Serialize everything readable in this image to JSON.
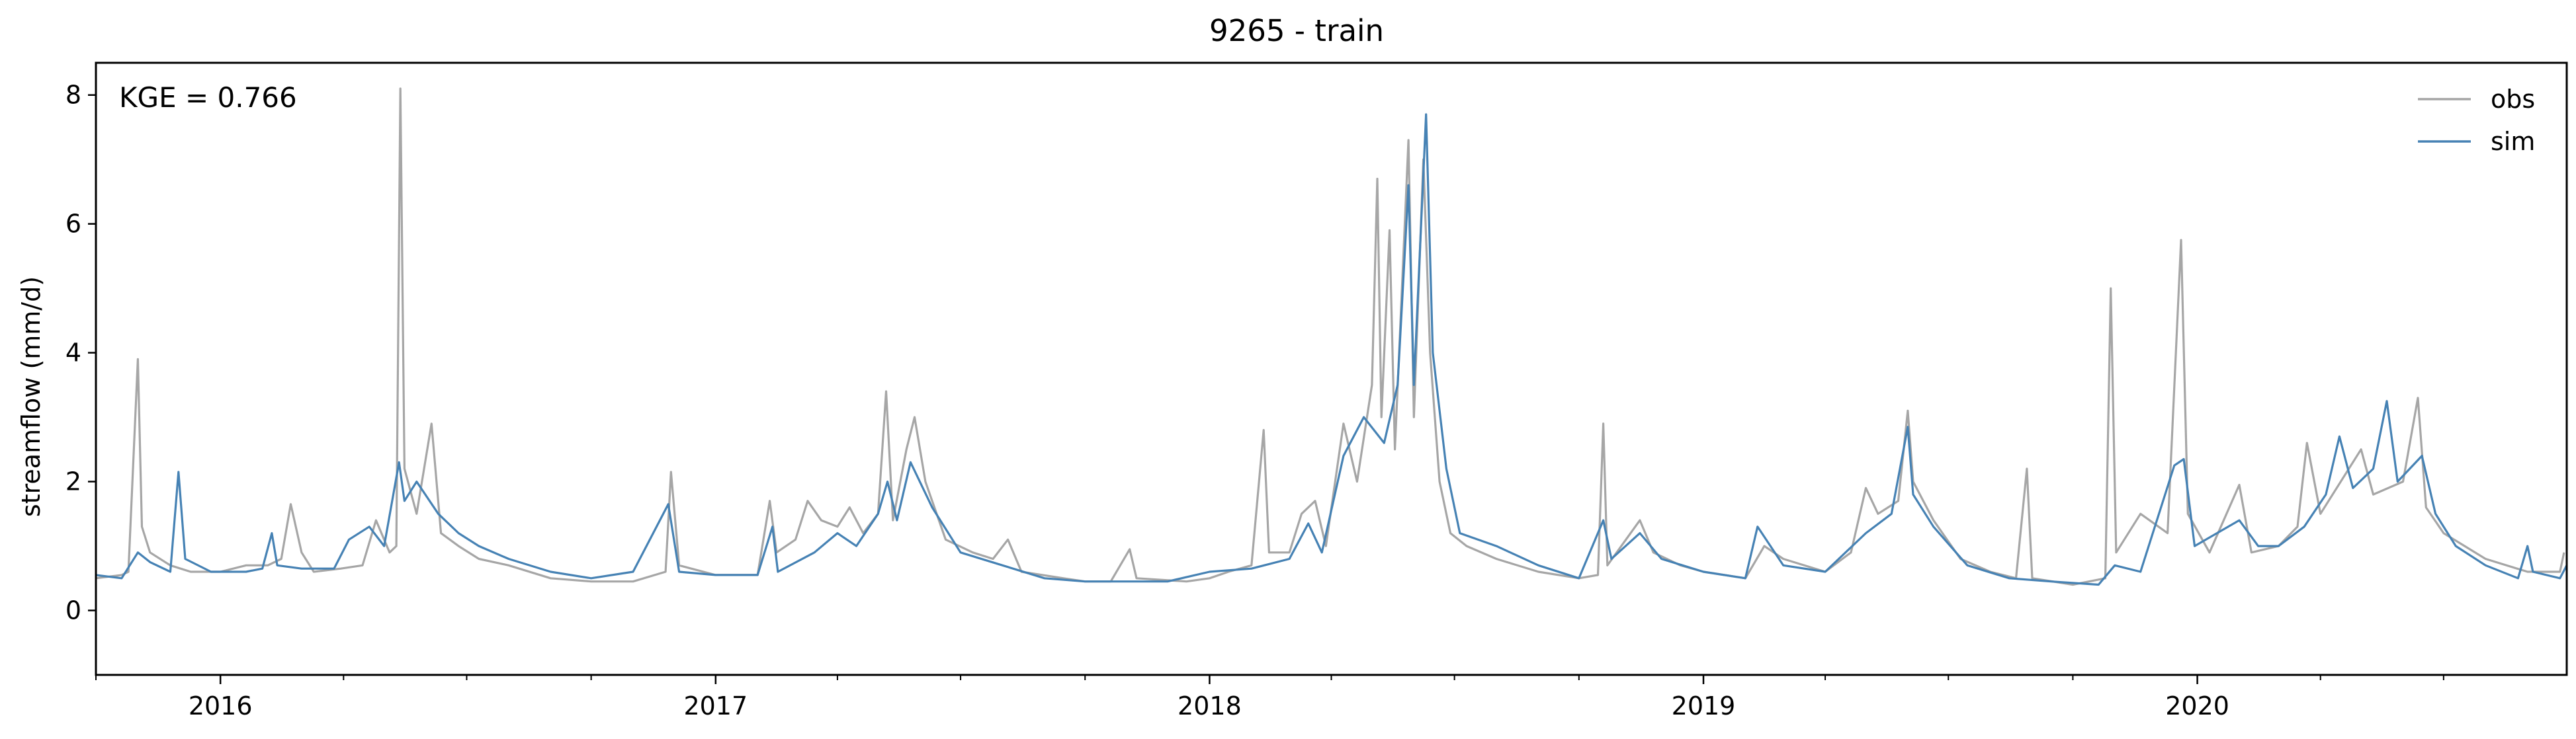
{
  "chart_data": {
    "type": "line",
    "title": "9265 - train",
    "ylabel": "streamflow (mm/d)",
    "xlabel": "",
    "annotation": "KGE = 0.766",
    "legend_position": "top-right",
    "grid": false,
    "x_range": [
      "2015-10-01",
      "2020-09-30"
    ],
    "ylim": [
      -1,
      8.5
    ],
    "x_ticks": [
      {
        "date": "2016-01-01",
        "label": "2016"
      },
      {
        "date": "2017-01-01",
        "label": "2017"
      },
      {
        "date": "2018-01-01",
        "label": "2018"
      },
      {
        "date": "2019-01-01",
        "label": "2019"
      },
      {
        "date": "2020-01-01",
        "label": "2020"
      }
    ],
    "y_ticks": [
      0,
      2,
      4,
      6,
      8
    ],
    "series": [
      {
        "name": "obs",
        "color": "#a6a6a6",
        "points": [
          [
            "2015-10-01",
            0.5
          ],
          [
            "2015-10-20",
            0.55
          ],
          [
            "2015-10-25",
            0.6
          ],
          [
            "2015-11-01",
            3.9
          ],
          [
            "2015-11-04",
            1.3
          ],
          [
            "2015-11-10",
            0.9
          ],
          [
            "2015-11-25",
            0.7
          ],
          [
            "2015-12-10",
            0.6
          ],
          [
            "2016-01-01",
            0.6
          ],
          [
            "2016-01-20",
            0.7
          ],
          [
            "2016-02-05",
            0.7
          ],
          [
            "2016-02-15",
            0.8
          ],
          [
            "2016-02-22",
            1.65
          ],
          [
            "2016-03-01",
            0.9
          ],
          [
            "2016-03-10",
            0.6
          ],
          [
            "2016-03-30",
            0.65
          ],
          [
            "2016-04-15",
            0.7
          ],
          [
            "2016-04-25",
            1.4
          ],
          [
            "2016-05-05",
            0.9
          ],
          [
            "2016-05-10",
            1.0
          ],
          [
            "2016-05-13",
            8.1
          ],
          [
            "2016-05-16",
            2.2
          ],
          [
            "2016-05-25",
            1.5
          ],
          [
            "2016-06-05",
            2.9
          ],
          [
            "2016-06-12",
            1.2
          ],
          [
            "2016-06-25",
            1.0
          ],
          [
            "2016-07-10",
            0.8
          ],
          [
            "2016-08-01",
            0.7
          ],
          [
            "2016-09-01",
            0.5
          ],
          [
            "2016-10-01",
            0.45
          ],
          [
            "2016-11-01",
            0.45
          ],
          [
            "2016-11-25",
            0.6
          ],
          [
            "2016-11-29",
            2.15
          ],
          [
            "2016-12-05",
            0.7
          ],
          [
            "2017-01-01",
            0.55
          ],
          [
            "2017-02-01",
            0.55
          ],
          [
            "2017-02-10",
            1.7
          ],
          [
            "2017-02-15",
            0.9
          ],
          [
            "2017-03-01",
            1.1
          ],
          [
            "2017-03-10",
            1.7
          ],
          [
            "2017-03-20",
            1.4
          ],
          [
            "2017-04-01",
            1.3
          ],
          [
            "2017-04-10",
            1.6
          ],
          [
            "2017-04-20",
            1.2
          ],
          [
            "2017-05-01",
            1.5
          ],
          [
            "2017-05-07",
            3.4
          ],
          [
            "2017-05-12",
            1.4
          ],
          [
            "2017-05-22",
            2.5
          ],
          [
            "2017-05-28",
            3.0
          ],
          [
            "2017-06-05",
            2.0
          ],
          [
            "2017-06-20",
            1.1
          ],
          [
            "2017-07-10",
            0.9
          ],
          [
            "2017-07-25",
            0.8
          ],
          [
            "2017-08-05",
            1.1
          ],
          [
            "2017-08-15",
            0.6
          ],
          [
            "2017-09-15",
            0.5
          ],
          [
            "2017-10-01",
            0.45
          ],
          [
            "2017-10-20",
            0.45
          ],
          [
            "2017-11-03",
            0.95
          ],
          [
            "2017-11-08",
            0.5
          ],
          [
            "2017-12-15",
            0.45
          ],
          [
            "2018-01-01",
            0.5
          ],
          [
            "2018-01-15",
            0.6
          ],
          [
            "2018-02-01",
            0.7
          ],
          [
            "2018-02-10",
            2.8
          ],
          [
            "2018-02-14",
            0.9
          ],
          [
            "2018-03-01",
            0.9
          ],
          [
            "2018-03-10",
            1.5
          ],
          [
            "2018-03-20",
            1.7
          ],
          [
            "2018-03-28",
            1.0
          ],
          [
            "2018-04-10",
            2.9
          ],
          [
            "2018-04-20",
            2.0
          ],
          [
            "2018-05-01",
            3.5
          ],
          [
            "2018-05-05",
            6.7
          ],
          [
            "2018-05-08",
            3.0
          ],
          [
            "2018-05-14",
            5.9
          ],
          [
            "2018-05-18",
            2.5
          ],
          [
            "2018-05-28",
            7.3
          ],
          [
            "2018-06-01",
            3.0
          ],
          [
            "2018-06-08",
            7.0
          ],
          [
            "2018-06-13",
            4.0
          ],
          [
            "2018-06-20",
            2.0
          ],
          [
            "2018-06-28",
            1.2
          ],
          [
            "2018-07-10",
            1.0
          ],
          [
            "2018-08-01",
            0.8
          ],
          [
            "2018-09-01",
            0.6
          ],
          [
            "2018-10-01",
            0.5
          ],
          [
            "2018-10-15",
            0.55
          ],
          [
            "2018-10-19",
            2.9
          ],
          [
            "2018-10-22",
            0.7
          ],
          [
            "2018-11-15",
            1.4
          ],
          [
            "2018-11-25",
            0.9
          ],
          [
            "2018-12-15",
            0.7
          ],
          [
            "2019-01-01",
            0.6
          ],
          [
            "2019-02-01",
            0.5
          ],
          [
            "2019-02-15",
            1.0
          ],
          [
            "2019-03-01",
            0.8
          ],
          [
            "2019-04-01",
            0.6
          ],
          [
            "2019-04-20",
            0.9
          ],
          [
            "2019-05-01",
            1.9
          ],
          [
            "2019-05-10",
            1.5
          ],
          [
            "2019-05-25",
            1.7
          ],
          [
            "2019-06-01",
            3.1
          ],
          [
            "2019-06-05",
            2.0
          ],
          [
            "2019-06-20",
            1.4
          ],
          [
            "2019-07-10",
            0.8
          ],
          [
            "2019-08-01",
            0.6
          ],
          [
            "2019-08-20",
            0.5
          ],
          [
            "2019-08-28",
            2.2
          ],
          [
            "2019-09-01",
            0.5
          ],
          [
            "2019-10-01",
            0.4
          ],
          [
            "2019-10-25",
            0.5
          ],
          [
            "2019-10-29",
            5.0
          ],
          [
            "2019-11-02",
            0.9
          ],
          [
            "2019-11-20",
            1.5
          ],
          [
            "2019-12-10",
            1.2
          ],
          [
            "2019-12-20",
            5.75
          ],
          [
            "2019-12-25",
            1.5
          ],
          [
            "2020-01-10",
            0.9
          ],
          [
            "2020-02-01",
            1.95
          ],
          [
            "2020-02-10",
            0.9
          ],
          [
            "2020-03-01",
            1.0
          ],
          [
            "2020-03-15",
            1.3
          ],
          [
            "2020-03-22",
            2.6
          ],
          [
            "2020-04-01",
            1.5
          ],
          [
            "2020-05-01",
            2.5
          ],
          [
            "2020-05-10",
            1.8
          ],
          [
            "2020-06-01",
            2.0
          ],
          [
            "2020-06-12",
            3.3
          ],
          [
            "2020-06-18",
            1.6
          ],
          [
            "2020-07-01",
            1.2
          ],
          [
            "2020-08-01",
            0.8
          ],
          [
            "2020-09-01",
            0.6
          ],
          [
            "2020-09-25",
            0.6
          ],
          [
            "2020-09-28",
            0.9
          ]
        ]
      },
      {
        "name": "sim",
        "color": "#4682b4",
        "points": [
          [
            "2015-10-01",
            0.55
          ],
          [
            "2015-10-20",
            0.5
          ],
          [
            "2015-11-01",
            0.9
          ],
          [
            "2015-11-10",
            0.75
          ],
          [
            "2015-11-25",
            0.6
          ],
          [
            "2015-12-01",
            2.15
          ],
          [
            "2015-12-06",
            0.8
          ],
          [
            "2015-12-25",
            0.6
          ],
          [
            "2016-01-20",
            0.6
          ],
          [
            "2016-02-01",
            0.65
          ],
          [
            "2016-02-08",
            1.2
          ],
          [
            "2016-02-12",
            0.7
          ],
          [
            "2016-03-01",
            0.65
          ],
          [
            "2016-03-25",
            0.65
          ],
          [
            "2016-04-05",
            1.1
          ],
          [
            "2016-04-20",
            1.3
          ],
          [
            "2016-05-01",
            1.0
          ],
          [
            "2016-05-12",
            2.3
          ],
          [
            "2016-05-16",
            1.7
          ],
          [
            "2016-05-25",
            2.0
          ],
          [
            "2016-06-10",
            1.5
          ],
          [
            "2016-06-25",
            1.2
          ],
          [
            "2016-07-10",
            1.0
          ],
          [
            "2016-08-01",
            0.8
          ],
          [
            "2016-09-01",
            0.6
          ],
          [
            "2016-10-01",
            0.5
          ],
          [
            "2016-11-01",
            0.6
          ],
          [
            "2016-11-27",
            1.65
          ],
          [
            "2016-12-05",
            0.6
          ],
          [
            "2017-01-01",
            0.55
          ],
          [
            "2017-02-01",
            0.55
          ],
          [
            "2017-02-12",
            1.3
          ],
          [
            "2017-02-16",
            0.6
          ],
          [
            "2017-03-15",
            0.9
          ],
          [
            "2017-04-01",
            1.2
          ],
          [
            "2017-04-15",
            1.0
          ],
          [
            "2017-05-01",
            1.5
          ],
          [
            "2017-05-08",
            2.0
          ],
          [
            "2017-05-15",
            1.4
          ],
          [
            "2017-05-25",
            2.3
          ],
          [
            "2017-06-10",
            1.6
          ],
          [
            "2017-07-01",
            0.9
          ],
          [
            "2017-08-01",
            0.7
          ],
          [
            "2017-09-01",
            0.5
          ],
          [
            "2017-10-01",
            0.45
          ],
          [
            "2017-12-01",
            0.45
          ],
          [
            "2018-01-01",
            0.6
          ],
          [
            "2018-02-01",
            0.65
          ],
          [
            "2018-03-01",
            0.8
          ],
          [
            "2018-03-15",
            1.35
          ],
          [
            "2018-03-25",
            0.9
          ],
          [
            "2018-04-10",
            2.4
          ],
          [
            "2018-04-25",
            3.0
          ],
          [
            "2018-05-10",
            2.6
          ],
          [
            "2018-05-20",
            3.5
          ],
          [
            "2018-05-28",
            6.6
          ],
          [
            "2018-06-01",
            3.5
          ],
          [
            "2018-06-10",
            7.7
          ],
          [
            "2018-06-15",
            4.0
          ],
          [
            "2018-06-25",
            2.2
          ],
          [
            "2018-07-05",
            1.2
          ],
          [
            "2018-08-01",
            1.0
          ],
          [
            "2018-09-01",
            0.7
          ],
          [
            "2018-10-01",
            0.5
          ],
          [
            "2018-10-19",
            1.4
          ],
          [
            "2018-10-25",
            0.8
          ],
          [
            "2018-11-15",
            1.2
          ],
          [
            "2018-12-01",
            0.8
          ],
          [
            "2019-01-01",
            0.6
          ],
          [
            "2019-02-01",
            0.5
          ],
          [
            "2019-02-10",
            1.3
          ],
          [
            "2019-03-01",
            0.7
          ],
          [
            "2019-04-01",
            0.6
          ],
          [
            "2019-05-01",
            1.2
          ],
          [
            "2019-05-20",
            1.5
          ],
          [
            "2019-06-01",
            2.85
          ],
          [
            "2019-06-05",
            1.8
          ],
          [
            "2019-06-20",
            1.3
          ],
          [
            "2019-07-15",
            0.7
          ],
          [
            "2019-08-15",
            0.5
          ],
          [
            "2019-09-15",
            0.45
          ],
          [
            "2019-10-20",
            0.4
          ],
          [
            "2019-11-01",
            0.7
          ],
          [
            "2019-11-20",
            0.6
          ],
          [
            "2019-12-15",
            2.25
          ],
          [
            "2019-12-22",
            2.35
          ],
          [
            "2019-12-30",
            1.0
          ],
          [
            "2020-02-01",
            1.4
          ],
          [
            "2020-02-15",
            1.0
          ],
          [
            "2020-03-01",
            1.0
          ],
          [
            "2020-03-20",
            1.3
          ],
          [
            "2020-04-05",
            1.8
          ],
          [
            "2020-04-15",
            2.7
          ],
          [
            "2020-04-25",
            1.9
          ],
          [
            "2020-05-10",
            2.2
          ],
          [
            "2020-05-20",
            3.25
          ],
          [
            "2020-05-28",
            2.0
          ],
          [
            "2020-06-15",
            2.4
          ],
          [
            "2020-06-25",
            1.5
          ],
          [
            "2020-07-10",
            1.0
          ],
          [
            "2020-08-01",
            0.7
          ],
          [
            "2020-08-25",
            0.5
          ],
          [
            "2020-09-01",
            1.0
          ],
          [
            "2020-09-05",
            0.6
          ],
          [
            "2020-09-25",
            0.5
          ],
          [
            "2020-09-30",
            0.7
          ]
        ]
      }
    ]
  }
}
